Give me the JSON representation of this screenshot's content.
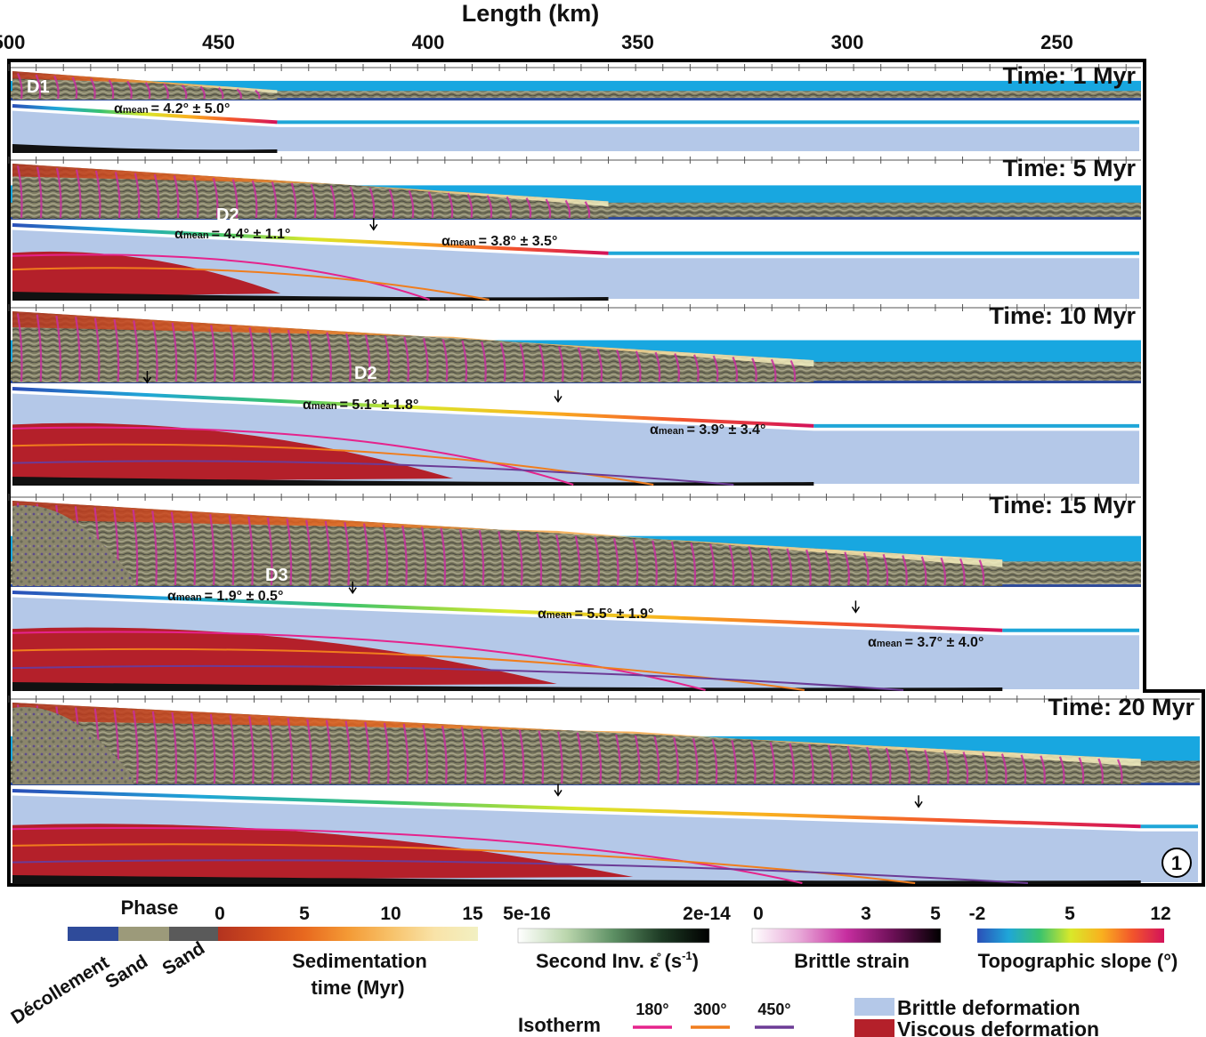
{
  "figure": {
    "axis": {
      "title": "Length (km)",
      "ticks": [
        {
          "value": 500,
          "label": "500"
        },
        {
          "value": 450,
          "label": "450"
        },
        {
          "value": 400,
          "label": "400"
        },
        {
          "value": 350,
          "label": "350"
        },
        {
          "value": 300,
          "label": "300"
        },
        {
          "value": 250,
          "label": "250"
        }
      ]
    },
    "panels": [
      {
        "time": "Time: 1 Myr",
        "domain_labels": [
          "D1"
        ],
        "front_km": 436,
        "slopes": [
          {
            "prefix": "α",
            "sub": "mean",
            "value": "= 4.2° ± 5.0°"
          }
        ],
        "arrows_km": []
      },
      {
        "time": "Time: 5 Myr",
        "domain_labels": [
          "D2"
        ],
        "front_km": 357,
        "slopes": [
          {
            "prefix": "α",
            "sub": "mean",
            "value": "= 4.4° ± 1.1°"
          },
          {
            "prefix": "α",
            "sub": "mean",
            "value": "= 3.8° ± 3.5°"
          }
        ],
        "arrows_km": [
          413
        ]
      },
      {
        "time": "Time: 10 Myr",
        "domain_labels": [
          "D2"
        ],
        "front_km": 308,
        "slopes": [
          {
            "prefix": "α",
            "sub": "mean",
            "value": "= 5.1° ± 1.8°"
          },
          {
            "prefix": "α",
            "sub": "mean",
            "value": "= 3.9° ± 3.4°"
          }
        ],
        "arrows_km": [
          467,
          369
        ]
      },
      {
        "time": "Time: 15 Myr",
        "domain_labels": [
          "D3"
        ],
        "front_km": 263,
        "slopes": [
          {
            "prefix": "α",
            "sub": "mean",
            "value": "= 1.9° ± 0.5°"
          },
          {
            "prefix": "α",
            "sub": "mean",
            "value": "= 5.5° ± 1.9°"
          },
          {
            "prefix": "α",
            "sub": "mean",
            "value": "= 3.7° ± 4.0°"
          }
        ],
        "arrows_km": [
          418,
          298
        ]
      },
      {
        "time": "Time: 20 Myr",
        "domain_labels": [],
        "front_km": 230,
        "badge": "1",
        "slopes": [],
        "arrows_km": [
          369,
          283
        ]
      }
    ],
    "legend": {
      "phase": {
        "title": "Phase",
        "items": [
          "Décollement",
          "Sand",
          "Sand"
        ],
        "colors": [
          "#2f4b9a",
          "#9c9a7a",
          "#5a5a5a"
        ]
      },
      "sedimentation": {
        "title": "Sedimentation time (Myr)",
        "line1": "Sedimentation",
        "line2": "time (Myr)",
        "ticks": [
          "0",
          "5",
          "10",
          "15"
        ],
        "colors": [
          "#b3331f",
          "#cf4a1e",
          "#e8691f",
          "#f49a35",
          "#f7c26a",
          "#f9e3a8",
          "#f2f0c2"
        ]
      },
      "strain_rate": {
        "title": "Second Inv. ε̊ (s-1)",
        "text": "Second Inv. ",
        "sym": "ε̊",
        "unit_open": " (s",
        "unit_exp": "-1",
        "unit_close": ")",
        "min": "5e-16",
        "max": "2e-14",
        "colors": [
          "#ffffff",
          "#bcd7ae",
          "#5c8f63",
          "#1d3a24",
          "#000000"
        ]
      },
      "brittle_strain": {
        "title": "Brittle strain",
        "ticks": [
          "0",
          "3",
          "5"
        ],
        "colors": [
          "#ffffff",
          "#e8a9d8",
          "#c72ea0",
          "#6a0f55",
          "#000000"
        ]
      },
      "topographic_slope": {
        "title": "Topographic slope (°)",
        "ticks": [
          "-2",
          "5",
          "12"
        ],
        "colors": [
          "#2b4fb8",
          "#1fa6d8",
          "#39c36e",
          "#d9e82a",
          "#f9b01f",
          "#f2542c",
          "#d3125a"
        ]
      },
      "isotherm": {
        "title": "Isotherm",
        "items": [
          {
            "label": "180°",
            "color": "#e5238c"
          },
          {
            "label": "300°",
            "color": "#f07d1d"
          },
          {
            "label": "450°",
            "color": "#6c3b96"
          }
        ]
      },
      "deformation": [
        {
          "label": "Brittle deformation",
          "color": "#b4c8e8"
        },
        {
          "label": "Viscous deformation",
          "color": "#b4202a"
        }
      ]
    }
  }
}
